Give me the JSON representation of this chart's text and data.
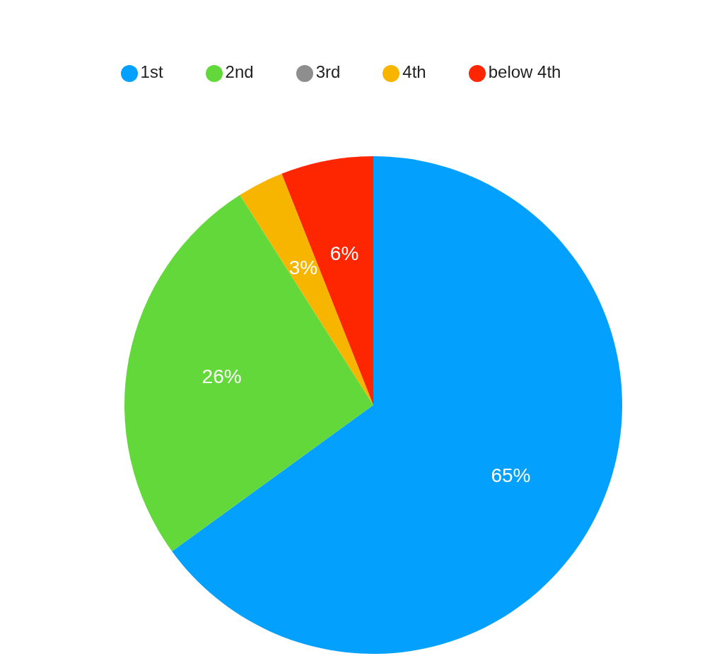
{
  "chart_data": {
    "type": "pie",
    "categories": [
      "1st",
      "2nd",
      "3rd",
      "4th",
      "below 4th"
    ],
    "values": [
      65,
      26,
      0,
      3,
      6
    ],
    "colors": [
      "#04a0fe",
      "#62d83a",
      "#8e8e8e",
      "#f8b500",
      "#fe2600"
    ],
    "value_labels": [
      "65%",
      "26%",
      null,
      "3%",
      "6%"
    ],
    "legend": "top"
  }
}
